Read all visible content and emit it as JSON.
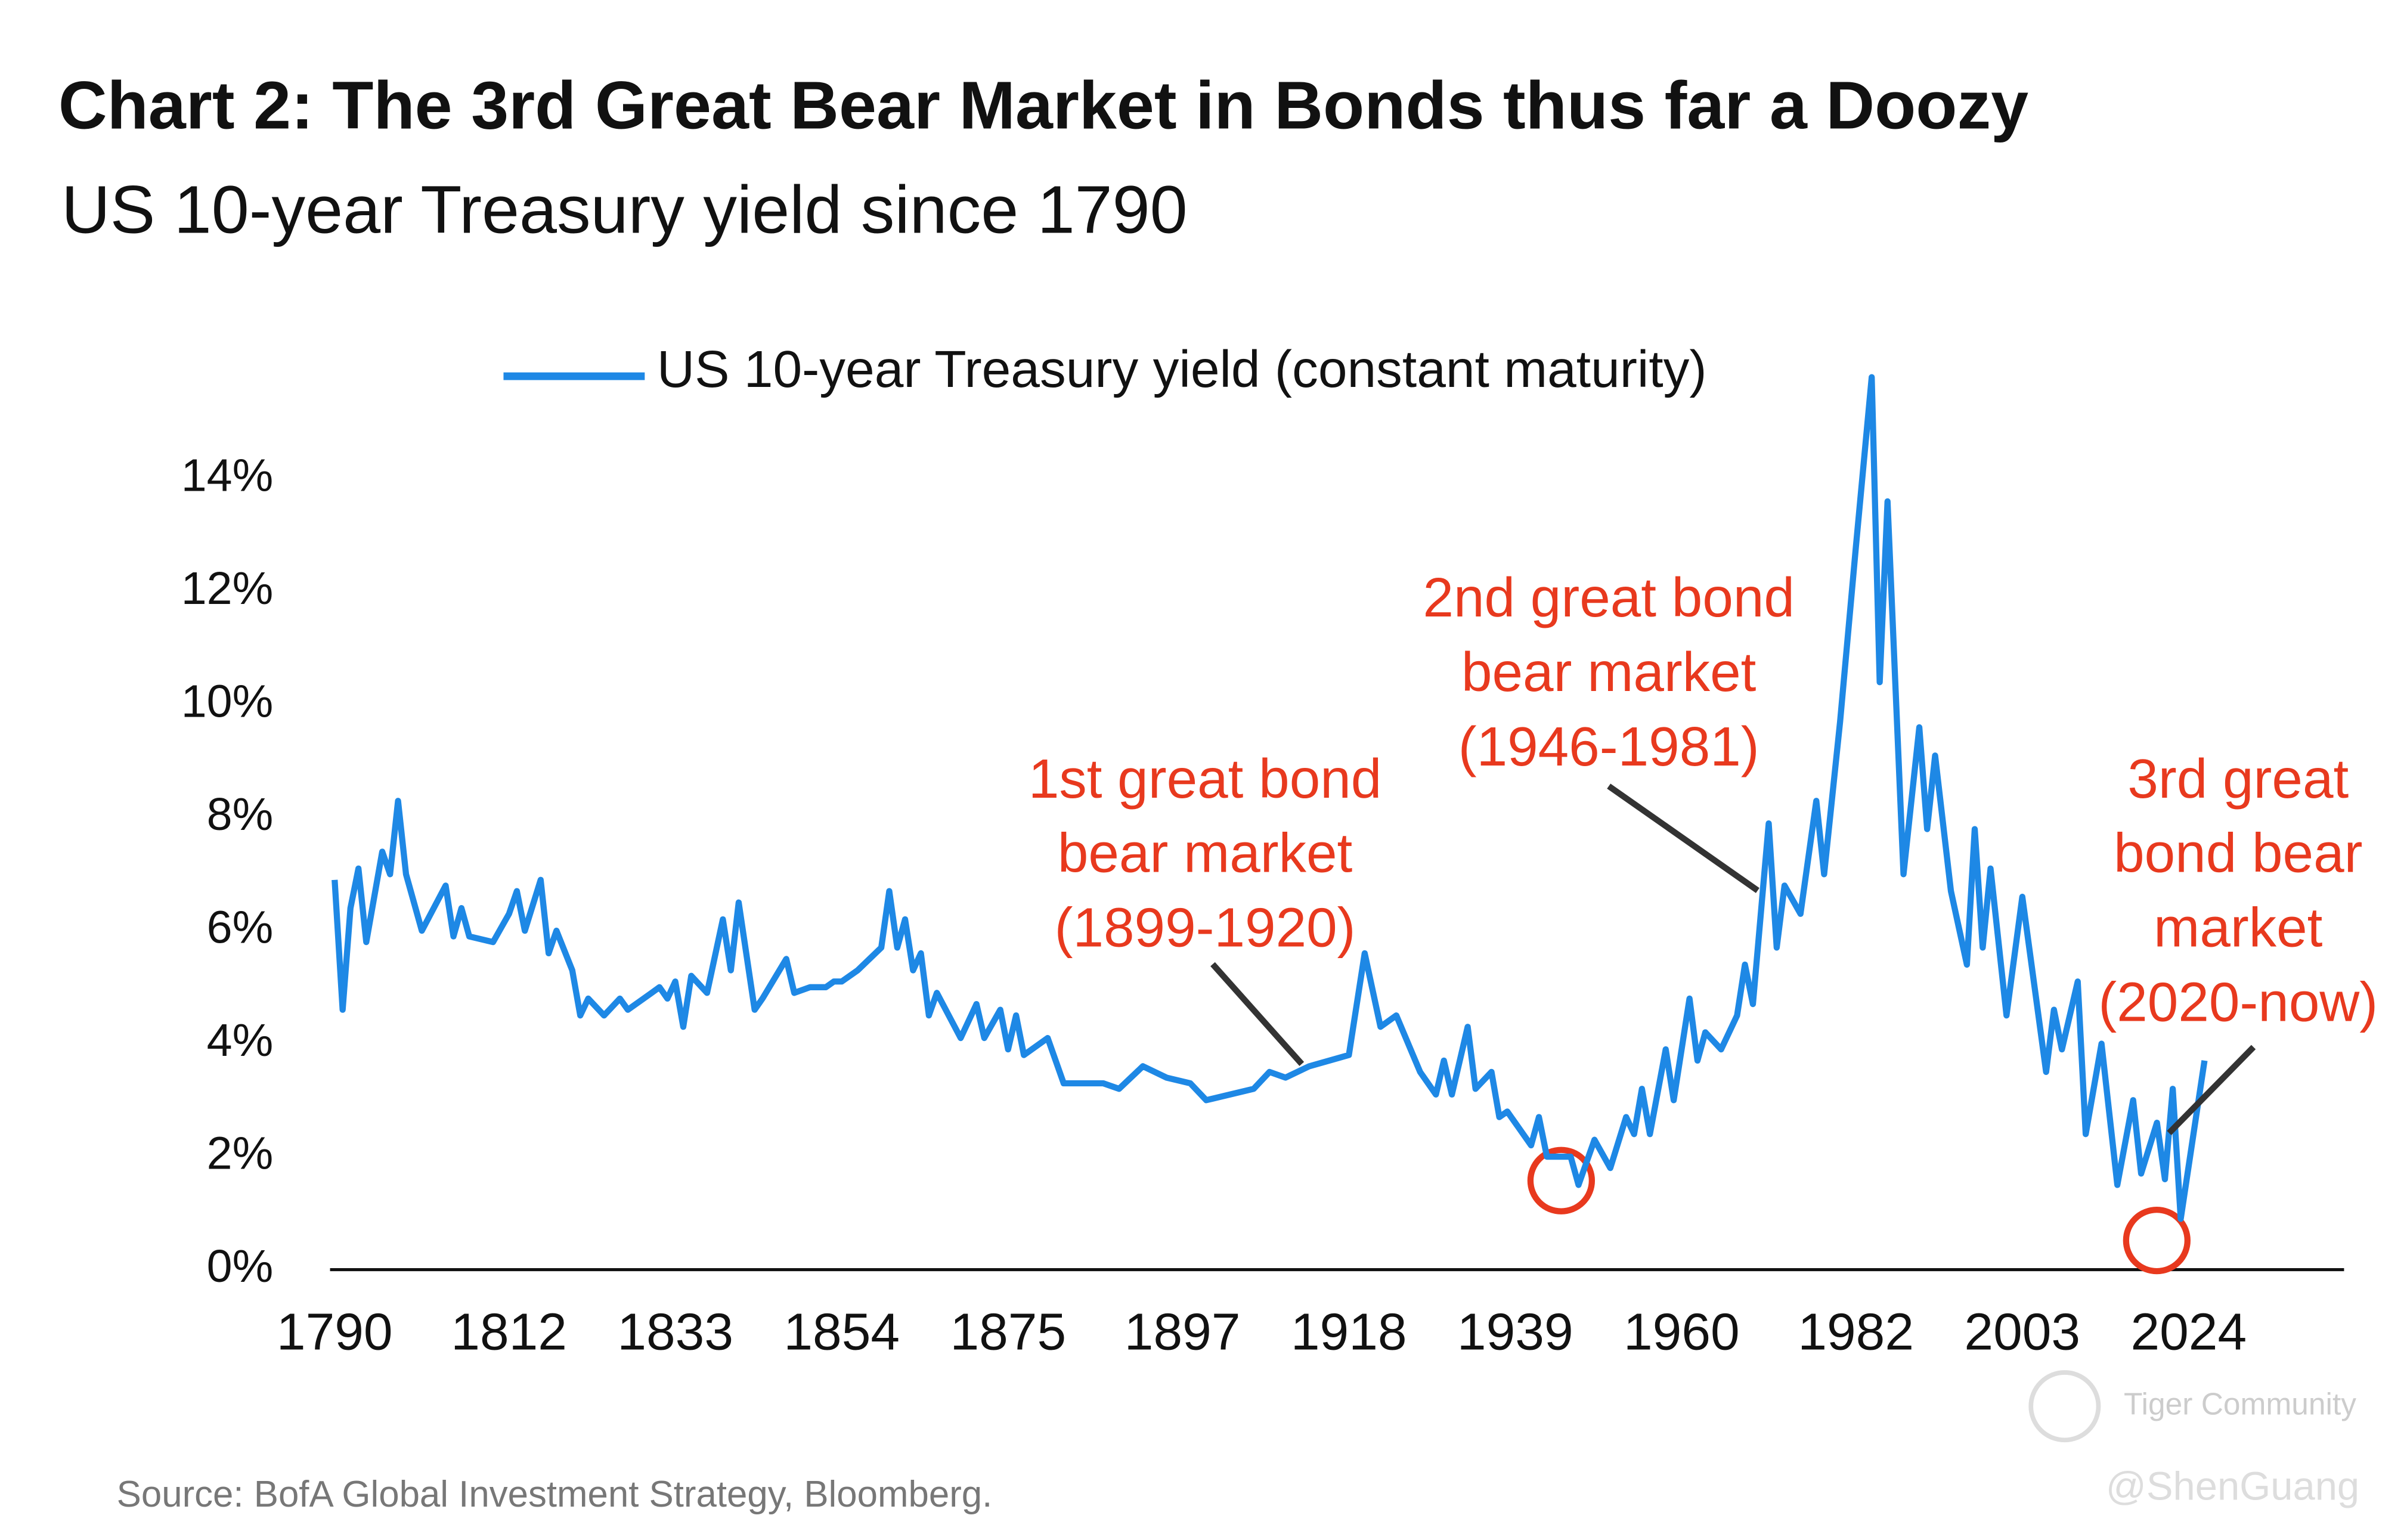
{
  "chart_data": {
    "type": "line",
    "title": "Chart 2: The 3rd Great Bear Market in Bonds thus far a Doozy",
    "subtitle": "US 10-year Treasury yield since 1790",
    "source": "Source: BofA Global Investment Strategy, Bloomberg.",
    "watermarks": [
      "Tiger Community",
      "@ShenGuang"
    ],
    "xlim": [
      1790,
      2044
    ],
    "xticks": [
      1790,
      1812,
      1833,
      1854,
      1875,
      1897,
      1918,
      1939,
      1960,
      1982,
      2003,
      2024
    ],
    "ylim": [
      0,
      16
    ],
    "yticks": [
      {
        "value": 0,
        "label": "0%"
      },
      {
        "value": 2,
        "label": "2%"
      },
      {
        "value": 4,
        "label": "4%"
      },
      {
        "value": 6,
        "label": "6%"
      },
      {
        "value": 8,
        "label": "8%"
      },
      {
        "value": 10,
        "label": "10%"
      },
      {
        "value": 12,
        "label": "12%"
      },
      {
        "value": 14,
        "label": "14%"
      }
    ],
    "grid": false,
    "legend": "top",
    "x": [
      1790,
      1791,
      1792,
      1793,
      1794,
      1796,
      1797,
      1798,
      1799,
      1801,
      1804,
      1805,
      1806,
      1807,
      1810,
      1812,
      1813,
      1814,
      1816,
      1817,
      1818,
      1820,
      1821,
      1822,
      1824,
      1826,
      1827,
      1830,
      1831,
      1832,
      1833,
      1834,
      1835,
      1837,
      1839,
      1840,
      1841,
      1843,
      1844,
      1847,
      1848,
      1850,
      1852,
      1853,
      1854,
      1856,
      1859,
      1860,
      1861,
      1862,
      1863,
      1864,
      1865,
      1866,
      1869,
      1871,
      1872,
      1874,
      1875,
      1876,
      1877,
      1880,
      1882,
      1886,
      1887,
      1889,
      1892,
      1895,
      1898,
      1900,
      1906,
      1908,
      1910,
      1913,
      1918,
      1920,
      1922,
      1924,
      1927,
      1929,
      1930,
      1931,
      1933,
      1934,
      1936,
      1937,
      1938,
      1941,
      1942,
      1943,
      1946,
      1947,
      1949,
      1951,
      1953,
      1954,
      1955,
      1956,
      1958,
      1959,
      1961,
      1962,
      1963,
      1965,
      1967,
      1968,
      1969,
      1971,
      1972,
      1973,
      1975,
      1977,
      1978,
      1980,
      1982,
      1984,
      1985,
      1986,
      1988,
      1990,
      1991,
      1992,
      1994,
      1996,
      1997,
      1998,
      1999,
      2001,
      2003,
      2006,
      2007,
      2008,
      2010,
      2011,
      2013,
      2015,
      2017,
      2018,
      2020,
      2021,
      2022,
      2023,
      2026
    ],
    "series": [
      {
        "name": "US 10-year Treasury yield (constant maturity)",
        "color": "#1e88e5",
        "values": [
          6.9,
          4.6,
          6.4,
          7.1,
          5.8,
          7.4,
          7.0,
          8.3,
          7.0,
          6.0,
          6.8,
          5.9,
          6.4,
          5.9,
          5.8,
          6.3,
          6.7,
          6.0,
          6.9,
          5.6,
          6.0,
          5.3,
          4.5,
          4.8,
          4.5,
          4.8,
          4.6,
          4.9,
          5.0,
          4.8,
          5.1,
          4.3,
          5.2,
          4.9,
          6.2,
          5.3,
          6.5,
          4.6,
          4.8,
          5.5,
          4.9,
          5.0,
          5.0,
          5.1,
          5.1,
          5.3,
          5.7,
          6.7,
          5.7,
          6.2,
          5.3,
          5.6,
          4.5,
          4.9,
          4.1,
          4.7,
          4.1,
          4.6,
          3.9,
          4.5,
          3.8,
          4.1,
          3.3,
          3.3,
          3.3,
          3.2,
          3.6,
          3.4,
          3.3,
          3.0,
          3.2,
          3.5,
          3.4,
          3.6,
          3.8,
          5.6,
          4.3,
          4.5,
          3.5,
          3.1,
          3.7,
          3.1,
          4.3,
          3.2,
          3.5,
          2.7,
          2.8,
          2.2,
          2.7,
          2.0,
          2.0,
          1.5,
          2.3,
          1.8,
          2.7,
          2.4,
          3.2,
          2.4,
          3.9,
          3.0,
          4.8,
          3.7,
          4.2,
          3.9,
          4.5,
          5.4,
          4.7,
          7.9,
          5.7,
          6.8,
          6.3,
          8.3,
          7.0,
          9.7,
          12.8,
          15.8,
          10.4,
          13.6,
          7.0,
          9.6,
          7.8,
          9.1,
          6.7,
          5.4,
          7.8,
          5.7,
          7.1,
          4.5,
          6.6,
          3.5,
          4.6,
          3.9,
          5.1,
          2.4,
          4.0,
          1.5,
          3.0,
          1.7,
          2.6,
          1.6,
          3.2,
          0.9,
          3.7
        ]
      }
    ],
    "annotations": [
      {
        "lines": [
          "1st great bond",
          "bear market",
          "(1899-1920)"
        ]
      },
      {
        "lines": [
          "2nd great bond",
          "bear market",
          "(1946-1981)"
        ]
      },
      {
        "lines": [
          "3rd great",
          "bond bear",
          "market",
          "(2020-now)"
        ]
      }
    ]
  }
}
